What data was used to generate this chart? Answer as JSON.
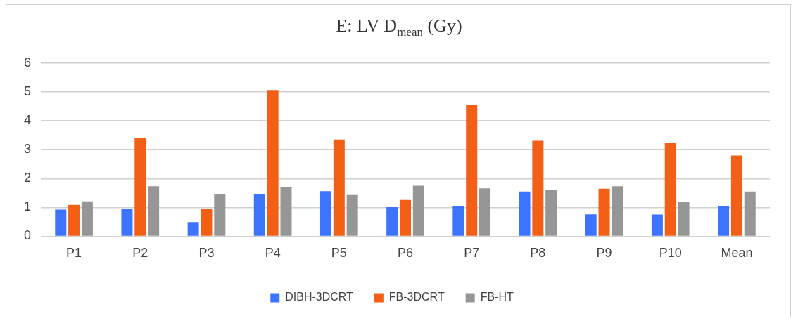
{
  "chart_data": {
    "type": "bar",
    "title": "E: LV D$_{mean}$ (Gy)",
    "categories": [
      "P1",
      "P2",
      "P3",
      "P4",
      "P5",
      "P6",
      "P7",
      "P8",
      "P9",
      "P10",
      "Mean"
    ],
    "series": [
      {
        "name": "DIBH-3DCRT",
        "color": "#3c73ff",
        "values": [
          0.92,
          0.94,
          0.49,
          1.47,
          1.56,
          1.01,
          1.05,
          1.55,
          0.76,
          0.75,
          1.05
        ]
      },
      {
        "name": "FB-3DCRT",
        "color": "#f45f16",
        "values": [
          1.09,
          3.4,
          0.96,
          5.07,
          3.35,
          1.26,
          4.56,
          3.31,
          1.65,
          3.24,
          2.8
        ]
      },
      {
        "name": "FB-HT",
        "color": "#969696",
        "values": [
          1.21,
          1.73,
          1.47,
          1.71,
          1.45,
          1.75,
          1.66,
          1.61,
          1.73,
          1.19,
          1.55
        ]
      }
    ],
    "ylim": [
      0,
      6
    ],
    "yticks": [
      0,
      1,
      2,
      3,
      4,
      5,
      6
    ],
    "grid": "y",
    "legend": "bottom"
  }
}
